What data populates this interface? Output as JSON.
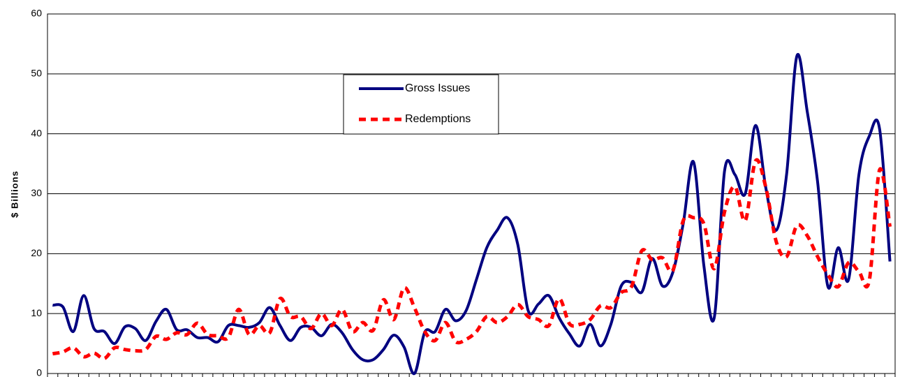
{
  "chart_data": {
    "type": "line",
    "y_label": "$ Billions",
    "categories": [
      null,
      null,
      null,
      null,
      null,
      null,
      null,
      null,
      null,
      null,
      null,
      null,
      null,
      null,
      null,
      null,
      null,
      null,
      null,
      null,
      null,
      null,
      null,
      null,
      null,
      null,
      null,
      null,
      null,
      null,
      null,
      null,
      null,
      null,
      null,
      null,
      null,
      null,
      null,
      null,
      null,
      null,
      null,
      null,
      null,
      null,
      null,
      null,
      null,
      null,
      null,
      null,
      null,
      null,
      null,
      null,
      null,
      null,
      null,
      null,
      null,
      null,
      null,
      null,
      null,
      null,
      null,
      null,
      null,
      null,
      null,
      null,
      null,
      null,
      null,
      null,
      null,
      null,
      null,
      null,
      null,
      null
    ],
    "series": [
      {
        "name": "Gross Issues",
        "color": "#000080",
        "style": "solid",
        "values": [
          11.4,
          11.1,
          7,
          13,
          7.5,
          7,
          5,
          7.8,
          7.5,
          5.5,
          8.7,
          10.7,
          7.3,
          7.3,
          6,
          6,
          5.3,
          8,
          8,
          7.7,
          8.5,
          11,
          8,
          5.5,
          7.7,
          7.7,
          6.3,
          8.2,
          6.8,
          4,
          2.3,
          2.3,
          4,
          6.4,
          4.4,
          0,
          6.9,
          7,
          10.7,
          8.8,
          10.5,
          15.7,
          21,
          23.9,
          26,
          21.5,
          10.5,
          11.6,
          13,
          9.3,
          6.6,
          4.6,
          8.2,
          4.6,
          8.2,
          14.6,
          15.2,
          13.6,
          19.2,
          14.6,
          16.9,
          25,
          35.3,
          18,
          9.3,
          33.8,
          33.2,
          30,
          41.4,
          30.9,
          23.9,
          33.2,
          53,
          43.7,
          32,
          14.5,
          21,
          15.7,
          33.2,
          39.6,
          40.8,
          18.7
        ]
      },
      {
        "name": "Redemptions",
        "color": "#ff0000",
        "style": "dashed",
        "values": [
          3.3,
          3.6,
          4.3,
          2.8,
          3.4,
          2.5,
          4.3,
          4,
          3.8,
          4,
          6.2,
          5.7,
          6.8,
          6.5,
          8.4,
          6.5,
          6.3,
          6,
          10.7,
          6.5,
          8,
          6.8,
          12.5,
          9.5,
          9.5,
          7.5,
          10,
          8,
          10.7,
          7,
          8.5,
          7.2,
          12.3,
          9,
          14.3,
          11,
          7,
          5.5,
          8.5,
          5.3,
          5.7,
          7,
          9.5,
          8.5,
          9.5,
          11.5,
          9.5,
          9,
          8,
          12.5,
          8.3,
          8.2,
          9,
          11.3,
          11,
          13.5,
          14.5,
          20.5,
          19,
          19.3,
          17.2,
          25.5,
          26,
          25,
          17.5,
          27,
          31.2,
          25.5,
          35.5,
          31,
          22,
          19.5,
          24.7,
          23,
          19.5,
          16.5,
          14.5,
          18.5,
          17,
          15.5,
          34,
          24.5
        ]
      }
    ],
    "ylim": [
      0,
      60
    ],
    "yticks": [
      0,
      10,
      20,
      30,
      40,
      50,
      60
    ],
    "grid": true
  }
}
